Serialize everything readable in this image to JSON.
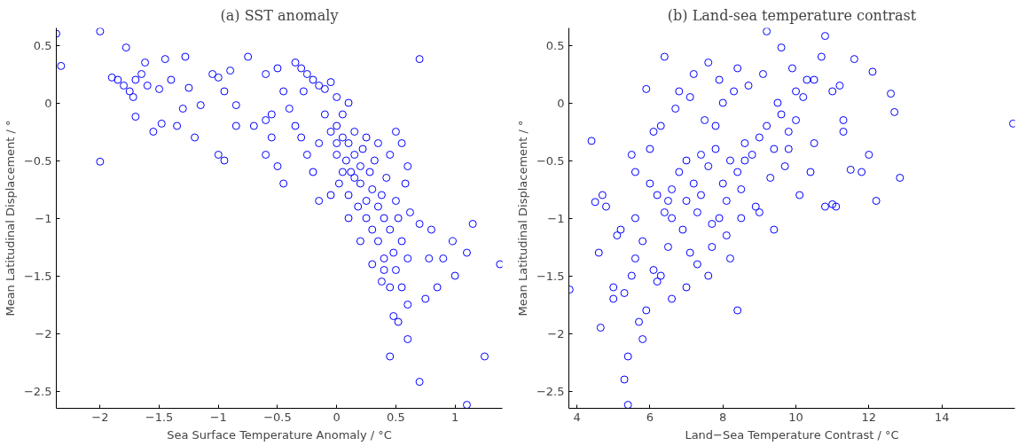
{
  "chart_data": [
    {
      "type": "scatter",
      "title": "(a) SST anomaly",
      "xlabel": "Sea Surface Temperature Anomaly / °C",
      "ylabel": "Mean Latitudinal Displacement / °",
      "xlim": [
        -2.37,
        1.4
      ],
      "ylim": [
        -2.65,
        0.65
      ],
      "xticks": [
        {
          "value": -2,
          "label": "−2"
        },
        {
          "value": -1.5,
          "label": "−1.5"
        },
        {
          "value": -1,
          "label": "−1"
        },
        {
          "value": -0.5,
          "label": "−0.5"
        },
        {
          "value": 0,
          "label": "0"
        },
        0.5,
        1
      ],
      "yticks": [
        {
          "value": -2.5,
          "label": "−2.5"
        },
        {
          "value": -2,
          "label": "−2"
        },
        {
          "value": -1.5,
          "label": "−1.5"
        },
        {
          "value": -1,
          "label": "−1"
        },
        {
          "value": -0.5,
          "label": "−0.5"
        },
        {
          "value": 0,
          "label": "0"
        },
        0.5
      ],
      "grid": false,
      "marker": "circle",
      "series": [
        {
          "color": "#0000ff",
          "x": [
            -2.37,
            -2.33,
            -2.0,
            -2.0,
            -1.9,
            -1.78,
            -1.8,
            -1.75,
            -1.7,
            -1.65,
            -1.62,
            -1.6,
            -1.7,
            -1.72,
            -1.5,
            -1.45,
            -1.4,
            -1.48,
            -1.35,
            -1.3,
            -1.28,
            -1.25,
            -1.2,
            -1.15,
            -1.05,
            -1.0,
            -0.95,
            -1.0,
            -0.95,
            -0.9,
            -0.85,
            -0.85,
            -0.75,
            -0.6,
            -0.6,
            -0.55,
            -0.55,
            -1.85,
            -1.55,
            -0.35,
            -0.3,
            -0.25,
            -0.2,
            -0.28,
            -0.15,
            -0.1,
            -0.05,
            -0.4,
            -0.35,
            -0.3,
            -0.25,
            -0.2,
            -0.15,
            -0.1,
            -0.05,
            0.0,
            0.0,
            0.0,
            0.02,
            0.05,
            0.05,
            0.08,
            0.1,
            0.1,
            0.1,
            0.12,
            0.15,
            0.15,
            0.18,
            0.2,
            0.2,
            0.22,
            0.25,
            0.25,
            0.28,
            0.3,
            0.3,
            0.32,
            0.35,
            0.35,
            0.38,
            0.4,
            0.4,
            0.42,
            0.45,
            0.45,
            0.48,
            0.5,
            0.5,
            0.52,
            0.55,
            0.58,
            0.6,
            0.62,
            0.4,
            0.3,
            0.2,
            0.1,
            -0.05,
            -0.15,
            -0.45,
            -0.5,
            -0.6,
            -0.7,
            -0.45,
            -0.5,
            0.0,
            0.05,
            0.15,
            0.25,
            0.35,
            0.5,
            0.45,
            0.55,
            0.6,
            0.48,
            0.6,
            0.52,
            0.38,
            0.7,
            0.75,
            0.78,
            0.45,
            0.7,
            1.1,
            1.25,
            1.38,
            1.1,
            1.15,
            1.0,
            0.98,
            0.7,
            0.55,
            0.6,
            0.85,
            0.8,
            0.9
          ],
          "values": [
            0.6,
            0.32,
            0.62,
            -0.51,
            0.22,
            0.48,
            0.15,
            0.1,
            0.2,
            0.25,
            0.35,
            0.15,
            -0.12,
            0.05,
            0.12,
            0.38,
            0.2,
            -0.18,
            -0.2,
            -0.05,
            0.4,
            0.13,
            -0.3,
            -0.02,
            0.25,
            0.22,
            0.1,
            -0.45,
            -0.5,
            0.28,
            -0.02,
            -0.2,
            0.4,
            0.25,
            -0.15,
            -0.3,
            -0.1,
            0.2,
            -0.25,
            0.35,
            0.3,
            0.25,
            0.2,
            0.1,
            0.15,
            0.12,
            0.18,
            -0.05,
            -0.2,
            -0.3,
            -0.45,
            -0.6,
            -0.35,
            -0.1,
            -0.25,
            0.05,
            -0.2,
            -0.45,
            -0.7,
            -0.3,
            -0.1,
            -0.5,
            -0.35,
            0.0,
            -0.8,
            -0.6,
            -0.25,
            -0.45,
            -0.9,
            -0.55,
            -0.7,
            -0.4,
            -0.85,
            -1.0,
            -0.6,
            -0.75,
            -1.1,
            -0.5,
            -0.9,
            -1.2,
            -0.8,
            -1.0,
            -1.35,
            -0.65,
            -1.1,
            -0.45,
            -1.3,
            -0.85,
            -1.45,
            -1.0,
            -1.2,
            -0.7,
            -1.35,
            -0.95,
            -1.45,
            -1.4,
            -1.2,
            -1.0,
            -0.8,
            -0.85,
            -0.7,
            -0.55,
            -0.45,
            -0.2,
            0.1,
            0.3,
            -0.35,
            -0.6,
            -0.65,
            -0.3,
            -0.35,
            -0.25,
            -1.6,
            -1.6,
            -1.75,
            -1.85,
            -2.05,
            -1.9,
            -1.55,
            -1.05,
            -1.7,
            -1.35,
            -2.2,
            -2.42,
            -2.62,
            -2.2,
            -1.4,
            -1.3,
            -1.05,
            -1.5,
            -1.2,
            0.38,
            -0.35,
            -0.55,
            -1.6,
            -1.1,
            -1.35
          ]
        }
      ]
    },
    {
      "type": "scatter",
      "title": "(b) Land-sea temperature contrast",
      "xlabel": "Land−Sea Temperature Contrast / °C",
      "ylabel": "Mean Latitudinal Displacement / °",
      "xlim": [
        3.78,
        16
      ],
      "ylim": [
        -2.65,
        0.65
      ],
      "xticks": [
        4,
        6,
        8,
        10,
        12,
        14
      ],
      "yticks": [
        {
          "value": -2.5,
          "label": "−2.5"
        },
        {
          "value": -2,
          "label": "−2"
        },
        {
          "value": -1.5,
          "label": "−1.5"
        },
        {
          "value": -1,
          "label": "−1"
        },
        {
          "value": -0.5,
          "label": "−0.5"
        },
        {
          "value": 0,
          "label": "0"
        },
        0.5
      ],
      "grid": false,
      "marker": "circle",
      "series": [
        {
          "color": "#0000ff",
          "x": [
            3.8,
            4.4,
            4.5,
            4.6,
            4.65,
            4.7,
            4.8,
            5.0,
            5.0,
            5.2,
            5.3,
            5.3,
            5.4,
            5.4,
            5.5,
            5.5,
            5.6,
            5.7,
            5.8,
            5.9,
            5.9,
            6.0,
            6.1,
            6.3,
            6.3,
            6.4,
            6.5,
            6.6,
            6.8,
            7.0,
            7.1,
            7.2,
            7.4,
            7.6,
            7.8,
            7.9,
            8.0,
            8.2,
            8.4,
            8.6,
            9.2,
            9.6,
            10.8,
            11.6,
            12.1,
            12.6,
            12.7,
            12.85,
            12.2,
            11.0,
            11.1,
            10.8,
            11.8,
            11.5,
            12.0,
            15.95,
            9.8,
            10.4,
            10.0,
            10.5,
            11.0,
            11.3,
            11.3,
            5.1,
            5.6,
            5.8,
            6.0,
            6.2,
            6.4,
            6.6,
            6.8,
            7.0,
            7.2,
            7.4,
            7.6,
            7.8,
            8.0,
            8.2,
            8.4,
            8.6,
            8.8,
            9.0,
            9.2,
            9.4,
            9.6,
            9.8,
            10.0,
            10.2,
            6.5,
            6.9,
            7.3,
            7.7,
            8.1,
            8.5,
            8.9,
            9.3,
            9.7,
            10.1,
            10.5,
            6.1,
            6.7,
            7.1,
            7.5,
            7.9,
            8.3,
            8.7,
            9.1,
            9.5,
            9.9,
            10.3,
            10.7,
            11.2,
            7.3,
            7.7,
            8.1,
            8.5,
            9.0,
            5.6,
            6.2,
            6.6,
            7.0,
            7.6,
            8.4,
            9.4
          ],
          "values": [
            -1.62,
            -0.33,
            -0.86,
            -1.3,
            -1.95,
            -0.8,
            -0.9,
            -1.7,
            -1.6,
            -1.1,
            -1.65,
            -2.4,
            -2.2,
            -2.62,
            -1.5,
            -0.45,
            -0.6,
            -1.9,
            -2.05,
            -1.8,
            0.12,
            -0.4,
            -1.45,
            -1.5,
            -0.2,
            0.4,
            -0.85,
            -1.0,
            0.1,
            -0.5,
            -1.3,
            0.25,
            -0.8,
            0.35,
            -0.2,
            -1.0,
            0.0,
            -1.35,
            0.3,
            -0.5,
            0.62,
            0.48,
            0.58,
            0.38,
            0.27,
            0.08,
            -0.08,
            -0.65,
            -0.85,
            -0.88,
            -0.9,
            -0.9,
            -0.6,
            -0.58,
            -0.45,
            -0.18,
            -0.4,
            -0.6,
            0.1,
            0.2,
            0.1,
            -0.25,
            -0.15,
            -1.15,
            -1.0,
            -1.2,
            -0.7,
            -0.8,
            -0.95,
            -0.75,
            -0.6,
            -0.85,
            -0.7,
            -0.45,
            -0.55,
            -0.4,
            -0.7,
            -0.5,
            -0.6,
            -0.35,
            -0.45,
            -0.3,
            -0.2,
            -0.4,
            -0.1,
            -0.25,
            -0.15,
            0.05,
            -1.25,
            -1.1,
            -0.95,
            -1.05,
            -0.85,
            -0.75,
            -0.9,
            -0.65,
            -0.55,
            -0.8,
            -0.35,
            -0.25,
            -0.05,
            0.05,
            -0.15,
            0.2,
            0.1,
            0.15,
            0.25,
            0.0,
            0.3,
            0.2,
            0.4,
            0.15,
            -1.4,
            -1.25,
            -1.15,
            -1.0,
            -0.95,
            -1.35,
            -1.55,
            -1.7,
            -1.6,
            -1.5,
            -1.8,
            -1.1
          ]
        }
      ]
    }
  ]
}
